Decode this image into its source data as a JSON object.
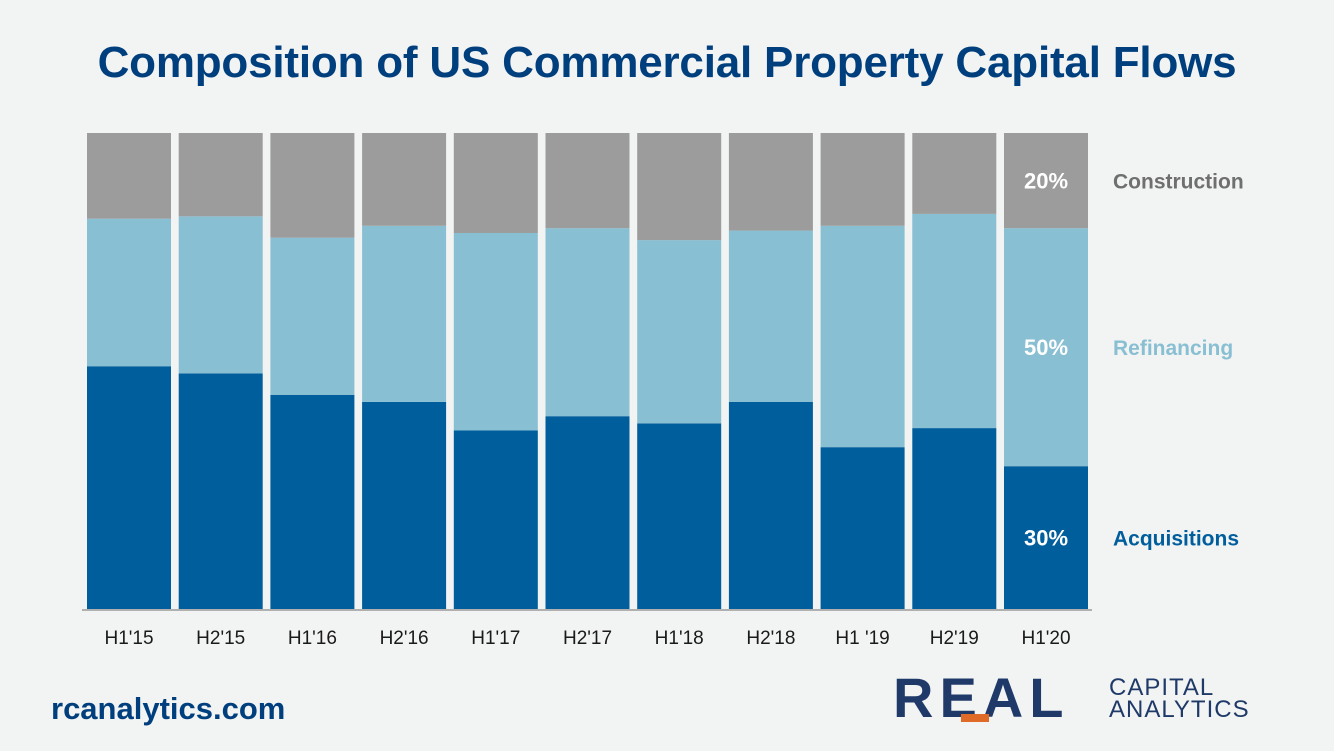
{
  "title": "Composition of US Commercial Property Capital Flows",
  "footer": {
    "website": "rcanalytics.com"
  },
  "logo": {
    "main": "REAL",
    "line1": "CAPITAL",
    "line2": "ANALYTICS"
  },
  "colors": {
    "acquisitions": "#005e9c",
    "refinancing": "#89bfd2",
    "construction": "#9c9c9c",
    "title": "#003f7d",
    "accent": "#e06a27"
  },
  "chart_data": {
    "type": "bar",
    "stacked": true,
    "normalized": true,
    "categories": [
      "H1'15",
      "H2'15",
      "H1'16",
      "H2'16",
      "H1'17",
      "H2'17",
      "H1'18",
      "H2'18",
      "H1 '19",
      "H2'19",
      "H1'20"
    ],
    "series": [
      {
        "name": "Acquisitions",
        "color": "#005e9c",
        "values": [
          51,
          49.5,
          45,
          43.5,
          37.5,
          40.5,
          39,
          43.5,
          34,
          38,
          30
        ]
      },
      {
        "name": "Refinancing",
        "color": "#89bfd2",
        "values": [
          31,
          33,
          33,
          37,
          41.5,
          39.5,
          38.5,
          36,
          46.5,
          45,
          50
        ]
      },
      {
        "name": "Construction",
        "color": "#9c9c9c",
        "values": [
          18,
          17.5,
          22,
          19.5,
          21,
          20,
          22.5,
          20.5,
          19.5,
          17,
          20
        ]
      }
    ],
    "data_labels": {
      "category": "H1'20",
      "Construction": "20%",
      "Refinancing": "50%",
      "Acquisitions": "30%"
    },
    "legend_position": "right",
    "ylim": [
      0,
      100
    ],
    "grid": false
  }
}
